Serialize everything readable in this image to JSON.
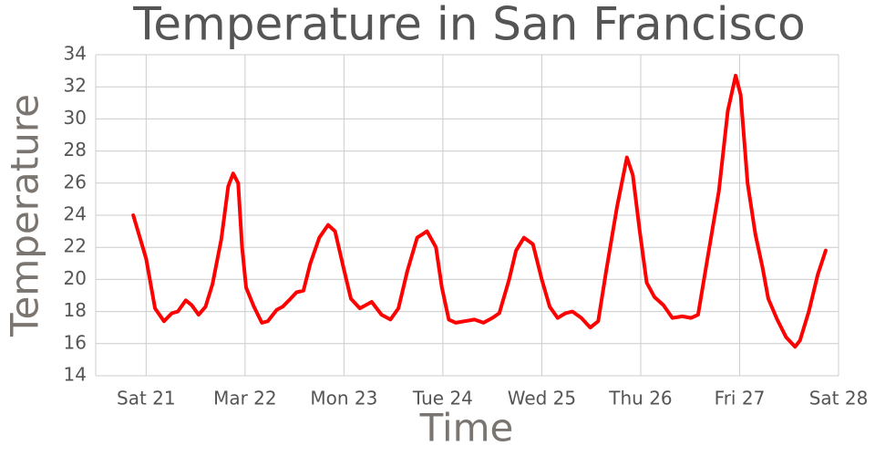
{
  "chart_data": {
    "type": "line",
    "title": "Temperature in San Francisco",
    "x_label": "Time",
    "y_label": "Temperature",
    "color": "#ff0000",
    "grid": true,
    "xlim": [
      20.49,
      28
    ],
    "xticks": [
      {
        "value": 21,
        "label": "Sat 21"
      },
      {
        "value": 22,
        "label": "Mar 22"
      },
      {
        "value": 23,
        "label": "Mon 23"
      },
      {
        "value": 24,
        "label": "Tue 24"
      },
      {
        "value": 25,
        "label": "Wed 25"
      },
      {
        "value": 26,
        "label": "Thu 26"
      },
      {
        "value": 27,
        "label": "Fri 27"
      },
      {
        "value": 28,
        "label": "Sat 28"
      }
    ],
    "ylim": [
      14,
      34
    ],
    "yticks": [
      14,
      16,
      18,
      20,
      22,
      24,
      26,
      28,
      30,
      32,
      34
    ],
    "x": [
      20.87,
      21.0,
      21.09,
      21.18,
      21.26,
      21.32,
      21.4,
      21.46,
      21.53,
      21.6,
      21.67,
      21.76,
      21.83,
      21.88,
      21.93,
      21.97,
      22.01,
      22.09,
      22.17,
      22.23,
      22.32,
      22.38,
      22.46,
      22.52,
      22.59,
      22.66,
      22.75,
      22.84,
      22.91,
      23.0,
      23.07,
      23.16,
      23.28,
      23.38,
      23.47,
      23.55,
      23.64,
      23.74,
      23.84,
      23.93,
      23.99,
      24.06,
      24.13,
      24.22,
      24.32,
      24.41,
      24.5,
      24.57,
      24.67,
      24.74,
      24.82,
      24.91,
      25.0,
      25.08,
      25.16,
      25.24,
      25.31,
      25.4,
      25.49,
      25.57,
      25.65,
      25.76,
      25.86,
      25.92,
      25.99,
      26.06,
      26.14,
      26.23,
      26.32,
      26.42,
      26.51,
      26.58,
      26.68,
      26.79,
      26.88,
      26.96,
      27.01,
      27.08,
      27.16,
      27.23,
      27.29,
      27.38,
      27.47,
      27.56,
      27.61,
      27.7,
      27.79,
      27.87
    ],
    "values": [
      24,
      21.3,
      18.2,
      17.4,
      17.9,
      18.0,
      18.7,
      18.4,
      17.8,
      18.3,
      19.7,
      22.5,
      25.8,
      26.6,
      26,
      22,
      19.5,
      18.3,
      17.3,
      17.4,
      18.1,
      18.3,
      18.8,
      19.2,
      19.3,
      21,
      22.6,
      23.4,
      23,
      20.6,
      18.8,
      18.2,
      18.6,
      17.8,
      17.5,
      18.2,
      20.5,
      22.6,
      23,
      22,
      19.5,
      17.5,
      17.3,
      17.4,
      17.5,
      17.3,
      17.6,
      17.9,
      20,
      21.8,
      22.6,
      22.2,
      20,
      18.3,
      17.6,
      17.9,
      18,
      17.6,
      17.0,
      17.4,
      20.5,
      24.5,
      27.6,
      26.5,
      23,
      19.8,
      18.9,
      18.4,
      17.6,
      17.7,
      17.6,
      17.8,
      21.5,
      25.5,
      30.5,
      32.7,
      31.5,
      26,
      22.8,
      20.8,
      18.8,
      17.5,
      16.4,
      15.8,
      16.2,
      18,
      20.3,
      21.8
    ]
  }
}
